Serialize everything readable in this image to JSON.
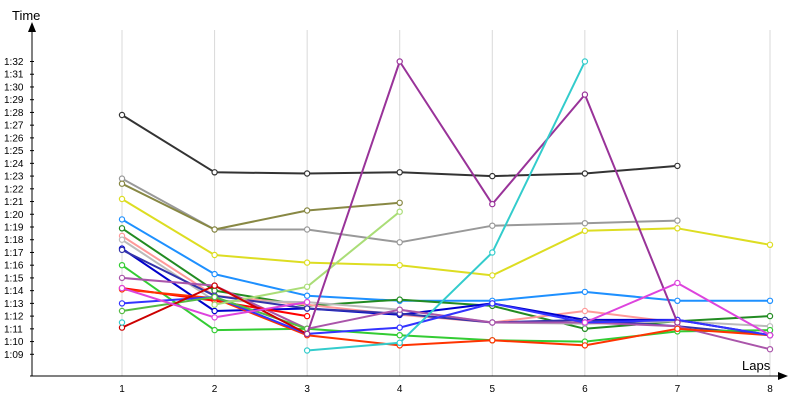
{
  "chart_data": {
    "type": "line",
    "xlabel": "Laps",
    "ylabel": "Time",
    "x": [
      1,
      2,
      3,
      4,
      5,
      6,
      7,
      8
    ],
    "x_tick_labels": [
      "1",
      "2",
      "3",
      "4",
      "5",
      "6",
      "7",
      "8"
    ],
    "y_tick_labels": [
      "1:09",
      "1:10",
      "1:11",
      "1:12",
      "1:13",
      "1:14",
      "1:15",
      "1:16",
      "1:17",
      "1:18",
      "1:19",
      "1:20",
      "1:21",
      "1:22",
      "1:23",
      "1:24",
      "1:25",
      "1:26",
      "1:27",
      "1:28",
      "1:29",
      "1:30",
      "1:31",
      "1:32"
    ],
    "y_unit": "seconds",
    "ylim": [
      67.5,
      94
    ],
    "grid": "vertical",
    "legend": "none",
    "series": [
      {
        "color": "#333333",
        "values": [
          87.8,
          83.3,
          83.2,
          83.3,
          83.0,
          83.2,
          83.8,
          null
        ]
      },
      {
        "color": "#999999",
        "values": [
          82.8,
          78.8,
          78.8,
          77.8,
          79.1,
          79.3,
          79.5,
          null
        ]
      },
      {
        "color": "#888844",
        "values": [
          82.4,
          78.8,
          80.3,
          80.9,
          null,
          null,
          null,
          null
        ]
      },
      {
        "color": "#dddd22",
        "values": [
          81.2,
          76.8,
          76.2,
          76.0,
          75.2,
          78.7,
          78.9,
          77.6
        ]
      },
      {
        "color": "#1e90ff",
        "values": [
          79.6,
          75.3,
          73.6,
          73.2,
          73.2,
          73.9,
          73.2,
          73.2
        ]
      },
      {
        "color": "#228b22",
        "values": [
          78.9,
          74.0,
          72.8,
          73.3,
          72.8,
          71.0,
          71.6,
          72.0
        ]
      },
      {
        "color": "#ff9999",
        "values": [
          78.3,
          73.6,
          72.9,
          72.1,
          71.5,
          72.4,
          71.5,
          null
        ]
      },
      {
        "color": "#bbbbbb",
        "values": [
          78.0,
          73.2,
          73.1,
          72.5,
          71.5,
          71.4,
          71.6,
          71.2
        ]
      },
      {
        "color": "#0000cc",
        "values": [
          77.3,
          72.4,
          72.6,
          72.1,
          73.0,
          71.7,
          71.7,
          70.5
        ]
      },
      {
        "color": "#3333aa",
        "values": [
          77.2,
          73.6,
          72.6,
          72.2,
          71.5,
          71.7,
          71.2,
          70.5
        ]
      },
      {
        "color": "#33cc33",
        "values": [
          76.0,
          70.9,
          71.0,
          70.5,
          70.1,
          70.0,
          70.8,
          70.9
        ]
      },
      {
        "color": "#aa55aa",
        "values": [
          75.0,
          74.4,
          71.0,
          72.5,
          71.5,
          71.5,
          71.2,
          69.4
        ]
      },
      {
        "color": "#ff0000",
        "values": [
          74.2,
          73.2,
          72.0,
          null,
          null,
          null,
          null,
          null
        ]
      },
      {
        "color": "#ff3300",
        "values": [
          74.1,
          73.4,
          70.5,
          69.7,
          70.1,
          69.7,
          71.0,
          70.5
        ]
      },
      {
        "color": "#3333ff",
        "values": [
          73.0,
          73.5,
          70.6,
          71.1,
          73.0,
          71.5,
          71.7,
          70.5
        ]
      },
      {
        "color": "#55bb44",
        "values": [
          72.4,
          73.5,
          71.0,
          null,
          null,
          null,
          null,
          null
        ]
      },
      {
        "color": "#aadd77",
        "values": [
          null,
          72.9,
          74.3,
          80.2,
          null,
          null,
          null,
          null
        ]
      },
      {
        "color": "#cc0000",
        "values": [
          71.1,
          74.4,
          70.6,
          null,
          null,
          null,
          null,
          null
        ]
      },
      {
        "color": "#993399",
        "values": [
          null,
          null,
          70.6,
          92.0,
          80.8,
          89.4,
          71.5,
          null
        ]
      },
      {
        "color": "#33cccc",
        "values": [
          71.5,
          null,
          69.3,
          69.9,
          77.0,
          92.0,
          null,
          null
        ]
      },
      {
        "color": "#dd44dd",
        "values": [
          null,
          null,
          null,
          null,
          null,
          71.5,
          74.6,
          70.5
        ]
      },
      {
        "color": "#dd44dd",
        "values": [
          74.2,
          71.9,
          73.1,
          null,
          null,
          null,
          null,
          null
        ]
      }
    ]
  }
}
